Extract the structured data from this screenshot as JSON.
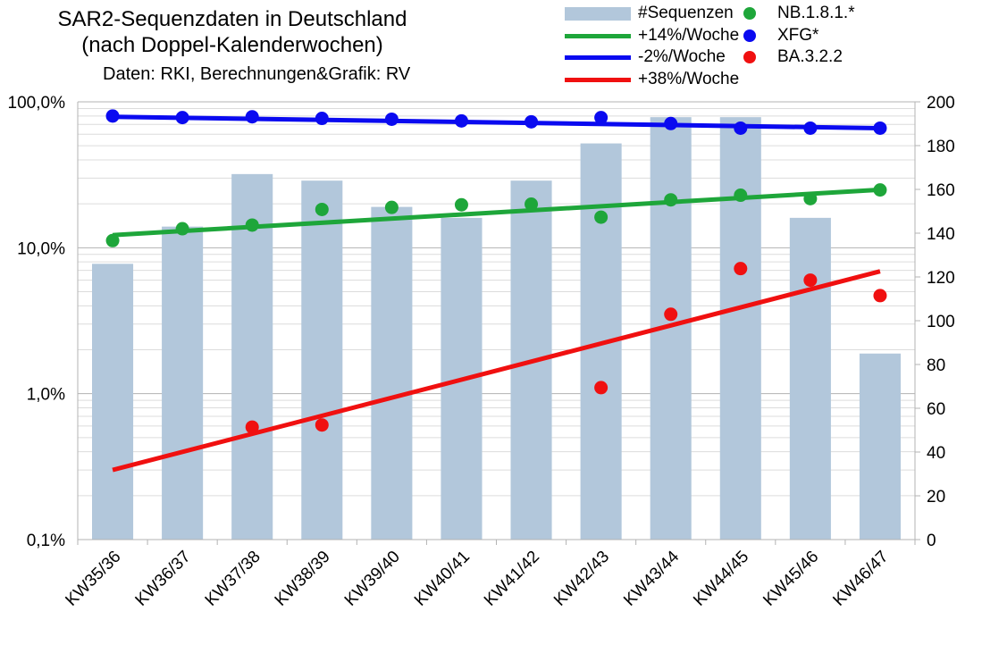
{
  "title": {
    "line1": "SAR2-Sequenzdaten in Deutschland",
    "line2": "(nach Doppel-Kalenderwochen)",
    "source": "Daten: RKI, Berechnungen&Grafik: RV"
  },
  "legend": {
    "bars": "#Sequenzen",
    "trend_green": "+14%/Woche",
    "trend_blue": "-2%/Woche",
    "trend_red": "+38%/Woche",
    "dots_green": "NB.1.8.1.*",
    "dots_blue": "XFG*",
    "dots_red": "BA.3.2.2"
  },
  "colors": {
    "bar": "#b2c7db",
    "green": "#1ea63a",
    "blue": "#0a0af0",
    "red": "#f01010",
    "grid": "#b3b3b3"
  },
  "chart_data": {
    "type": "bar+line+scatter",
    "categories": [
      "KW35/36",
      "KW36/37",
      "KW37/38",
      "KW38/39",
      "KW39/40",
      "KW40/41",
      "KW41/42",
      "KW42/43",
      "KW43/44",
      "KW44/45",
      "KW45/46",
      "KW46/47"
    ],
    "left_axis": {
      "scale": "log",
      "range": [
        0.1,
        100
      ],
      "ticks": [
        0.1,
        1,
        10,
        100
      ],
      "tick_labels": [
        "0,1%",
        "1,0%",
        "10,0%",
        "100,0%"
      ]
    },
    "right_axis": {
      "scale": "linear",
      "range": [
        0,
        200
      ],
      "ticks": [
        0,
        20,
        40,
        60,
        80,
        100,
        120,
        140,
        160,
        180,
        200
      ],
      "tick_labels": [
        "0",
        "20",
        "40",
        "60",
        "80",
        "100",
        "120",
        "140",
        "160",
        "180",
        "200"
      ]
    },
    "bars": {
      "name": "#Sequenzen",
      "axis": "right",
      "values": [
        126,
        143,
        167,
        164,
        152,
        147,
        164,
        181,
        193,
        193,
        147,
        85
      ]
    },
    "scatter": [
      {
        "name": "NB.1.8.1.*",
        "axis": "left",
        "color": "green",
        "values": [
          11.2,
          13.5,
          14.3,
          18.3,
          18.9,
          19.7,
          19.9,
          16.2,
          21.3,
          22.9,
          21.7,
          24.9
        ]
      },
      {
        "name": "XFG*",
        "axis": "left",
        "color": "blue",
        "values": [
          80,
          78,
          79,
          77,
          76,
          74,
          73,
          78,
          71,
          66,
          66,
          66
        ]
      },
      {
        "name": "BA.3.2.2",
        "axis": "left",
        "color": "red",
        "values": [
          null,
          null,
          0.59,
          0.61,
          null,
          null,
          null,
          1.1,
          3.5,
          7.2,
          6.0,
          4.7
        ]
      }
    ],
    "trend_lines": [
      {
        "name": "+14%/Woche",
        "color": "green",
        "start": 12.2,
        "end": 25.0
      },
      {
        "name": "-2%/Woche",
        "color": "blue",
        "start": 79,
        "end": 66
      },
      {
        "name": "+38%/Woche",
        "color": "red",
        "start": 0.3,
        "end": 6.9
      }
    ]
  }
}
